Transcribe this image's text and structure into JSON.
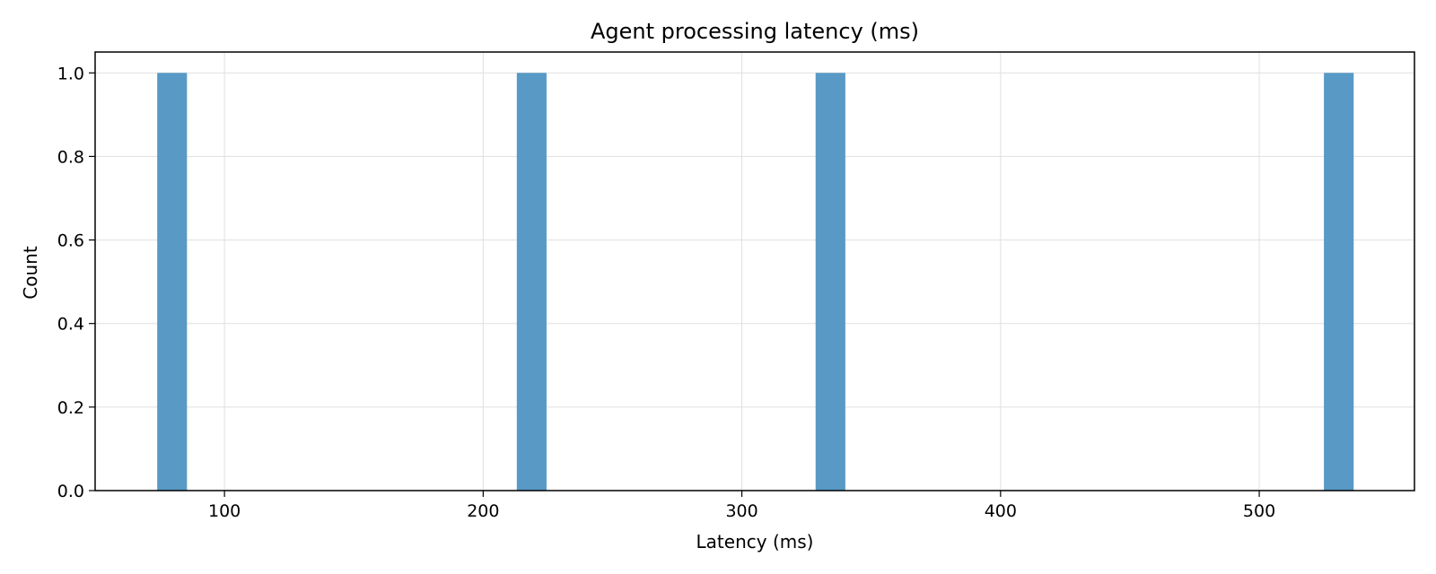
{
  "chart_data": {
    "type": "bar",
    "title": "Agent processing latency (ms)",
    "xlabel": "Latency (ms)",
    "ylabel": "Count",
    "xlim": [
      50,
      560
    ],
    "ylim": [
      0,
      1.05
    ],
    "x_ticks": [
      100,
      200,
      300,
      400,
      500
    ],
    "x_tick_labels": [
      "100",
      "200",
      "300",
      "400",
      "500"
    ],
    "y_ticks": [
      0.0,
      0.2,
      0.4,
      0.6,
      0.8,
      1.0
    ],
    "y_tick_labels": [
      "0.0",
      "0.2",
      "0.4",
      "0.6",
      "0.8",
      "1.0"
    ],
    "grid": true,
    "bins": [
      {
        "start": 74,
        "end": 85.5,
        "count": 1
      },
      {
        "start": 213,
        "end": 224.5,
        "count": 1
      },
      {
        "start": 328.5,
        "end": 340,
        "count": 1
      },
      {
        "start": 525,
        "end": 536.5,
        "count": 1
      }
    ],
    "colors": {
      "bar": "#5899c6",
      "grid": "#e0e0e0",
      "axis": "#000000"
    }
  }
}
